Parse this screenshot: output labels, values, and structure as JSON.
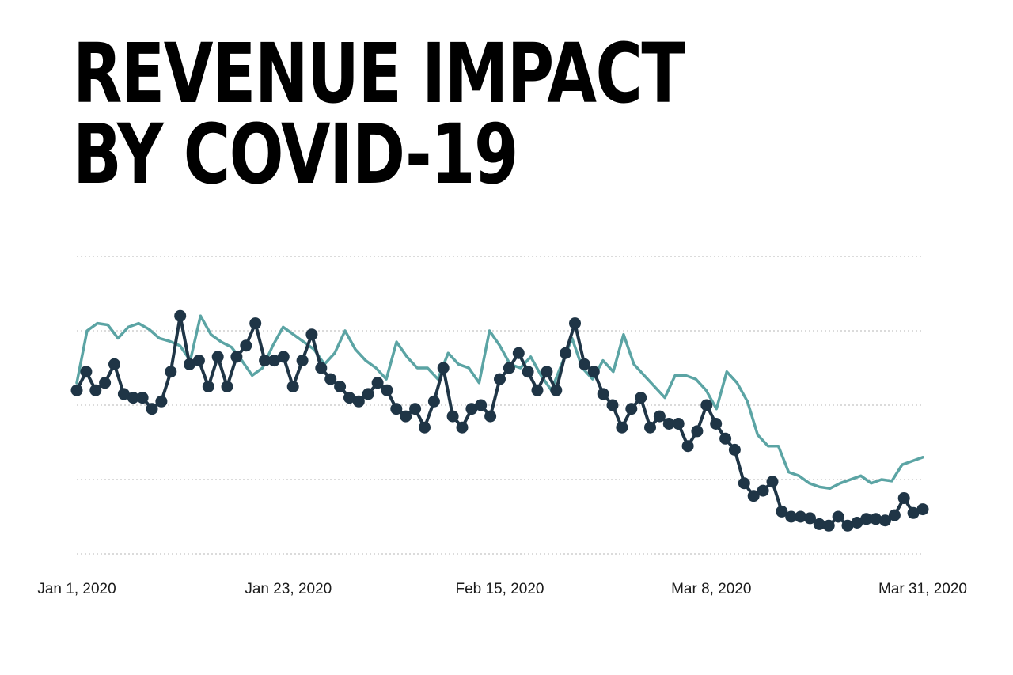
{
  "title": {
    "line1": "REVENUE IMPACT",
    "line2": "BY COVID-19"
  },
  "colors": {
    "background": "#ffffff",
    "title": "#000000",
    "grid": "#cfcfcf",
    "series_dark": "#1f3546",
    "series_teal": "#5ba4a4",
    "tick_text": "#1b1b1b"
  },
  "chart_data": {
    "type": "line",
    "x_ticks": [
      "Jan 1, 2020",
      "Jan 23, 2020",
      "Feb 15, 2020",
      "Mar 8, 2020",
      "Mar 31, 2020"
    ],
    "x_start": "2020-01-01",
    "x_end": "2020-03-31",
    "ylim": [
      0,
      4
    ],
    "y_gridlines": [
      0,
      1,
      2,
      3,
      4
    ],
    "y_tick_labels_shown": false,
    "grid": true,
    "grid_style": "dotted",
    "legend": "none",
    "series": [
      {
        "color": "#1f3546",
        "markers": true,
        "values": [
          2.2,
          2.45,
          2.2,
          2.3,
          2.55,
          2.15,
          2.1,
          2.1,
          1.95,
          2.05,
          2.45,
          3.2,
          2.55,
          2.6,
          2.25,
          2.65,
          2.25,
          2.65,
          2.8,
          3.1,
          2.6,
          2.6,
          2.65,
          2.25,
          2.6,
          2.95,
          2.5,
          2.35,
          2.25,
          2.1,
          2.05,
          2.15,
          2.3,
          2.2,
          1.95,
          1.85,
          1.95,
          1.7,
          2.05,
          2.5,
          1.85,
          1.7,
          1.95,
          2.0,
          1.85,
          2.35,
          2.5,
          2.7,
          2.45,
          2.2,
          2.45,
          2.2,
          2.7,
          3.1,
          2.55,
          2.45,
          2.15,
          2.0,
          1.7,
          1.95,
          2.1,
          1.7,
          1.85,
          1.75,
          1.75,
          1.45,
          1.65,
          2.0,
          1.75,
          1.55,
          1.4,
          0.95,
          0.78,
          0.85,
          0.97,
          0.57,
          0.5,
          0.5,
          0.48,
          0.4,
          0.38,
          0.5,
          0.38,
          0.42,
          0.47,
          0.47,
          0.45,
          0.52,
          0.75,
          0.55,
          0.6
        ]
      },
      {
        "color": "#5ba4a4",
        "markers": false,
        "values": [
          2.3,
          3.0,
          3.1,
          3.08,
          2.9,
          3.05,
          3.1,
          3.02,
          2.9,
          2.86,
          2.8,
          2.6,
          3.2,
          2.95,
          2.85,
          2.78,
          2.6,
          2.4,
          2.5,
          2.8,
          3.05,
          2.95,
          2.85,
          2.75,
          2.55,
          2.7,
          3.0,
          2.75,
          2.6,
          2.5,
          2.35,
          2.85,
          2.65,
          2.5,
          2.5,
          2.35,
          2.7,
          2.55,
          2.5,
          2.3,
          3.0,
          2.8,
          2.55,
          2.5,
          2.65,
          2.4,
          2.2,
          2.55,
          2.9,
          2.5,
          2.35,
          2.6,
          2.45,
          2.95,
          2.55,
          2.4,
          2.25,
          2.1,
          2.4,
          2.4,
          2.35,
          2.2,
          1.95,
          2.45,
          2.3,
          2.05,
          1.6,
          1.45,
          1.45,
          1.1,
          1.05,
          0.95,
          0.9,
          0.88,
          0.95,
          1.0,
          1.05,
          0.95,
          1.0,
          0.98,
          1.2,
          1.25,
          1.3
        ]
      }
    ]
  }
}
